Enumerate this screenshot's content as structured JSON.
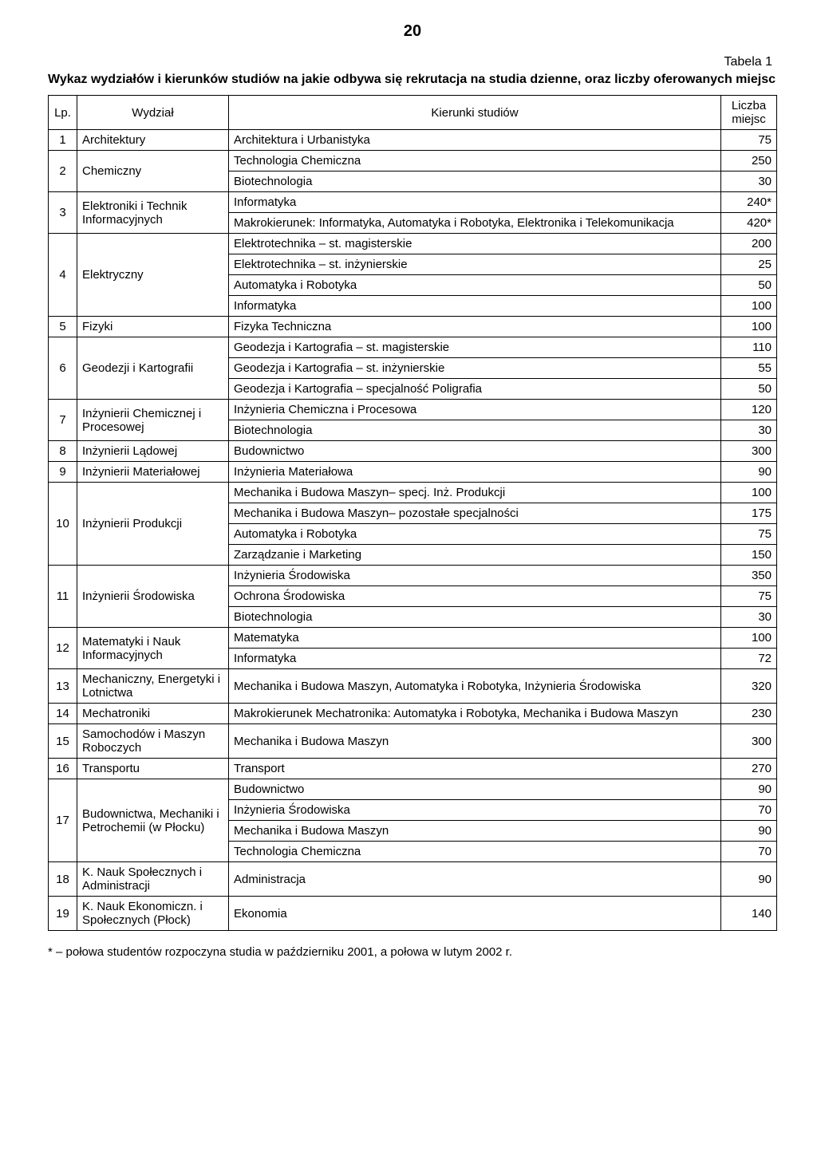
{
  "page_number": "20",
  "table_label": "Tabela 1",
  "title": "Wykaz wydziałów i kierunków studiów na jakie odbywa się rekrutacja na studia dzienne, oraz liczby oferowanych miejsc",
  "headers": {
    "lp": "Lp.",
    "wydzial": "Wydział",
    "kierunki": "Kierunki studiów",
    "liczba": "Liczba miejsc"
  },
  "rows": [
    {
      "lp": "1",
      "wydzial": "Architektury",
      "kierunek": "Architektura i Urbanistyka",
      "liczba": "75",
      "lp_span": 1,
      "wy_span": 1
    },
    {
      "lp": "2",
      "wydzial": "Chemiczny",
      "kierunek": "Technologia Chemiczna",
      "liczba": "250",
      "lp_span": 2,
      "wy_span": 2
    },
    {
      "kierunek": "Biotechnologia",
      "liczba": "30"
    },
    {
      "lp": "3",
      "wydzial": "Elektroniki i Technik Informacyjnych",
      "kierunek": "Informatyka",
      "liczba": "240*",
      "lp_span": 2,
      "wy_span": 2
    },
    {
      "kierunek": "Makrokierunek: Informatyka, Automatyka i Robotyka, Elektronika i Telekomunikacja",
      "liczba": "420*"
    },
    {
      "lp": "4",
      "wydzial": "Elektryczny",
      "kierunek": "Elektrotechnika – st. magisterskie",
      "liczba": "200",
      "lp_span": 4,
      "wy_span": 4
    },
    {
      "kierunek": "Elektrotechnika – st. inżynierskie",
      "liczba": "25"
    },
    {
      "kierunek": "Automatyka i Robotyka",
      "liczba": "50"
    },
    {
      "kierunek": "Informatyka",
      "liczba": "100"
    },
    {
      "lp": "5",
      "wydzial": "Fizyki",
      "kierunek": "Fizyka Techniczna",
      "liczba": "100",
      "lp_span": 1,
      "wy_span": 1
    },
    {
      "lp": "6",
      "wydzial": "Geodezji i Kartografii",
      "kierunek": "Geodezja i Kartografia – st. magisterskie",
      "liczba": "110",
      "lp_span": 3,
      "wy_span": 3
    },
    {
      "kierunek": "Geodezja i Kartografia – st. inżynierskie",
      "liczba": "55"
    },
    {
      "kierunek": "Geodezja i Kartografia – specjalność Poligrafia",
      "liczba": "50"
    },
    {
      "lp": "7",
      "wydzial": "Inżynierii Chemicznej i Procesowej",
      "kierunek": "Inżynieria Chemiczna i Procesowa",
      "liczba": "120",
      "lp_span": 2,
      "wy_span": 2
    },
    {
      "kierunek": "Biotechnologia",
      "liczba": "30"
    },
    {
      "lp": "8",
      "wydzial": "Inżynierii Lądowej",
      "kierunek": "Budownictwo",
      "liczba": "300",
      "lp_span": 1,
      "wy_span": 1
    },
    {
      "lp": "9",
      "wydzial": "Inżynierii Materiałowej",
      "kierunek": "Inżynieria Materiałowa",
      "liczba": "90",
      "lp_span": 1,
      "wy_span": 1
    },
    {
      "lp": "10",
      "wydzial": "Inżynierii Produkcji",
      "kierunek": "Mechanika i Budowa Maszyn– specj. Inż. Produkcji",
      "liczba": "100",
      "lp_span": 4,
      "wy_span": 4
    },
    {
      "kierunek": "Mechanika i Budowa Maszyn– pozostałe specjalności",
      "liczba": "175"
    },
    {
      "kierunek": "Automatyka i Robotyka",
      "liczba": "75"
    },
    {
      "kierunek": "Zarządzanie i Marketing",
      "liczba": "150"
    },
    {
      "lp": "11",
      "wydzial": "Inżynierii Środowiska",
      "kierunek": "Inżynieria Środowiska",
      "liczba": "350",
      "lp_span": 3,
      "wy_span": 3
    },
    {
      "kierunek": "Ochrona Środowiska",
      "liczba": "75"
    },
    {
      "kierunek": "Biotechnologia",
      "liczba": "30"
    },
    {
      "lp": "12",
      "wydzial": "Matematyki i Nauk Informacyjnych",
      "kierunek": "Matematyka",
      "liczba": "100",
      "lp_span": 2,
      "wy_span": 2
    },
    {
      "kierunek": "Informatyka",
      "liczba": "72"
    },
    {
      "lp": "13",
      "wydzial": "Mechaniczny, Energetyki i Lotnictwa",
      "kierunek": "Mechanika i Budowa Maszyn, Automatyka i Robotyka, Inżynieria Środowiska",
      "liczba": "320",
      "lp_span": 1,
      "wy_span": 1
    },
    {
      "lp": "14",
      "wydzial": "Mechatroniki",
      "kierunek": "Makrokierunek Mechatronika: Automatyka i Robotyka, Mechanika i Budowa Maszyn",
      "liczba": "230",
      "lp_span": 1,
      "wy_span": 1
    },
    {
      "lp": "15",
      "wydzial": "Samochodów i Maszyn Roboczych",
      "kierunek": "Mechanika i Budowa Maszyn",
      "liczba": "300",
      "lp_span": 1,
      "wy_span": 1
    },
    {
      "lp": "16",
      "wydzial": "Transportu",
      "kierunek": "Transport",
      "liczba": "270",
      "lp_span": 1,
      "wy_span": 1
    },
    {
      "lp": "17",
      "wydzial": "Budownictwa, Mechaniki i Petrochemii (w Płocku)",
      "kierunek": "Budownictwo",
      "liczba": "90",
      "lp_span": 4,
      "wy_span": 4
    },
    {
      "kierunek": "Inżynieria Środowiska",
      "liczba": "70"
    },
    {
      "kierunek": "Mechanika i Budowa Maszyn",
      "liczba": "90"
    },
    {
      "kierunek": "Technologia Chemiczna",
      "liczba": "70"
    },
    {
      "lp": "18",
      "wydzial": "K. Nauk Społecznych i Administracji",
      "kierunek": "Administracja",
      "liczba": "90",
      "lp_span": 1,
      "wy_span": 1
    },
    {
      "lp": "19",
      "wydzial": "K. Nauk Ekonomiczn. i Społecznych (Płock)",
      "kierunek": "Ekonomia",
      "liczba": "140",
      "lp_span": 1,
      "wy_span": 1
    }
  ],
  "footnote": "* – połowa studentów rozpoczyna studia w październiku 2001, a połowa w lutym 2002 r."
}
